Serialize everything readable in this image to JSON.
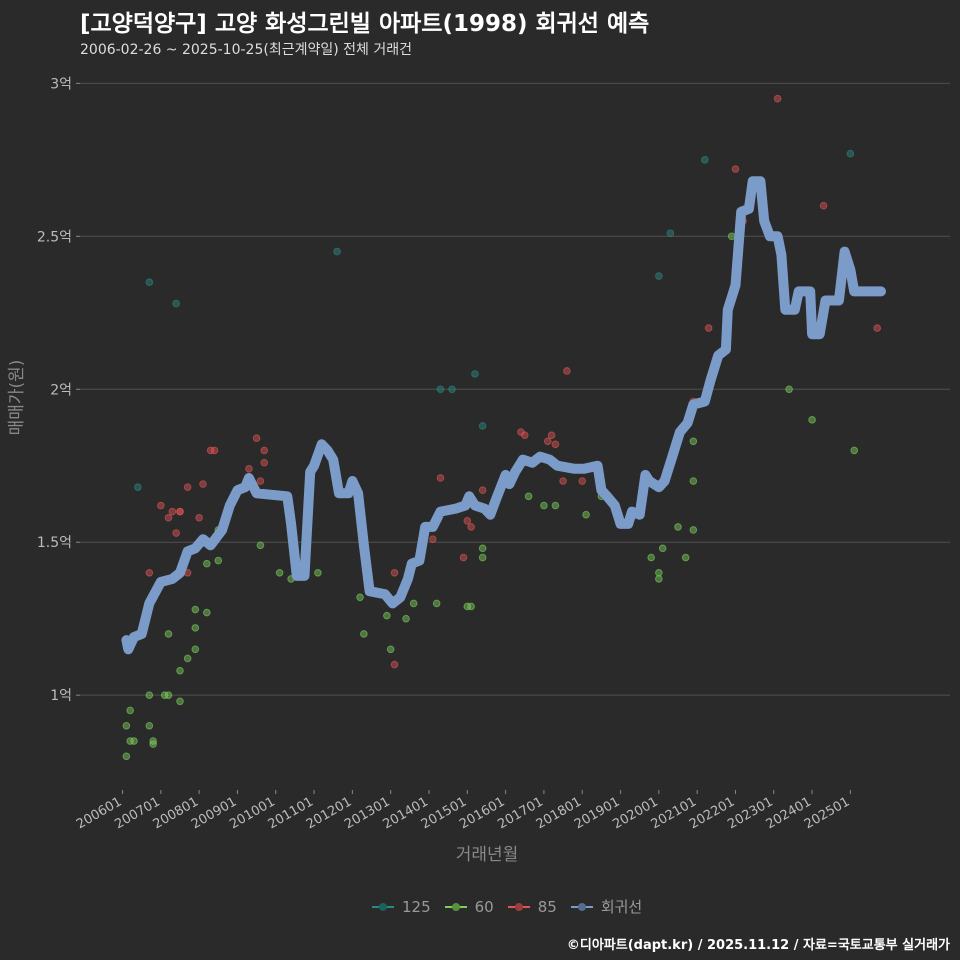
{
  "header": {
    "title": "[고양덕양구] 고양 화성그린빌 아파트(1998) 회귀선 예측",
    "subtitle": "2006-02-26 ~ 2025-10-25(최근계약일) 전체 거래건"
  },
  "footer": "©디아파트(dapt.kr) / 2025.11.12 / 자료=국토교통부 실거래가",
  "colors": {
    "background": "#2a2a2b",
    "grid": "#505050",
    "s125": "#2a8a84",
    "s60": "#7ccf5c",
    "s85": "#e05555",
    "regression": "#7b9bc8"
  },
  "chart_data": {
    "type": "scatter+line",
    "title": "[고양덕양구] 고양 화성그린빌 아파트(1998) 회귀선 예측",
    "xlabel": "거래년월",
    "ylabel": "매매가(원)",
    "xlim": [
      2004.89,
      2027.6
    ],
    "ylim": [
      0.69,
      3.06
    ],
    "grid": true,
    "legend_position": "bottom",
    "x_ticks": [
      {
        "value": 2006,
        "label": "200601"
      },
      {
        "value": 2007,
        "label": "200701"
      },
      {
        "value": 2008,
        "label": "200801"
      },
      {
        "value": 2009,
        "label": "200901"
      },
      {
        "value": 2010,
        "label": "201001"
      },
      {
        "value": 2011,
        "label": "201101"
      },
      {
        "value": 2012,
        "label": "201201"
      },
      {
        "value": 2013,
        "label": "201301"
      },
      {
        "value": 2014,
        "label": "201401"
      },
      {
        "value": 2015,
        "label": "201501"
      },
      {
        "value": 2016,
        "label": "201601"
      },
      {
        "value": 2017,
        "label": "201701"
      },
      {
        "value": 2018,
        "label": "201801"
      },
      {
        "value": 2019,
        "label": "201901"
      },
      {
        "value": 2020,
        "label": "202001"
      },
      {
        "value": 2021,
        "label": "202101"
      },
      {
        "value": 2022,
        "label": "202201"
      },
      {
        "value": 2023,
        "label": "202301"
      },
      {
        "value": 2024,
        "label": "202401"
      },
      {
        "value": 2025,
        "label": "202501"
      }
    ],
    "y_ticks": [
      {
        "value": 1,
        "label": "1억"
      },
      {
        "value": 1.5,
        "label": "1.5억"
      },
      {
        "value": 2,
        "label": "2억"
      },
      {
        "value": 2.5,
        "label": "2.5억"
      },
      {
        "value": 3,
        "label": "3억"
      }
    ],
    "series": [
      {
        "name": "125",
        "kind": "scatter",
        "color": "#2a8a84",
        "points": [
          [
            2006.4,
            1.68
          ],
          [
            2006.7,
            2.35
          ],
          [
            2007.4,
            2.28
          ],
          [
            2011.6,
            2.45
          ],
          [
            2014.3,
            2.0
          ],
          [
            2014.6,
            2.0
          ],
          [
            2015.2,
            2.05
          ],
          [
            2015.4,
            1.88
          ],
          [
            2020.0,
            2.37
          ],
          [
            2020.3,
            2.51
          ],
          [
            2021.2,
            2.75
          ],
          [
            2025.0,
            2.77
          ]
        ]
      },
      {
        "name": "60",
        "kind": "scatter",
        "color": "#7ccf5c",
        "points": [
          [
            2006.1,
            0.9
          ],
          [
            2006.1,
            0.8
          ],
          [
            2006.2,
            0.95
          ],
          [
            2006.2,
            0.85
          ],
          [
            2006.3,
            0.85
          ],
          [
            2006.7,
            0.9
          ],
          [
            2006.7,
            1.0
          ],
          [
            2006.8,
            0.85
          ],
          [
            2006.8,
            0.84
          ],
          [
            2007.1,
            1.0
          ],
          [
            2007.2,
            1.0
          ],
          [
            2007.2,
            1.2
          ],
          [
            2007.5,
            0.98
          ],
          [
            2007.5,
            1.08
          ],
          [
            2007.7,
            1.12
          ],
          [
            2007.9,
            1.15
          ],
          [
            2007.9,
            1.22
          ],
          [
            2007.9,
            1.28
          ],
          [
            2008.2,
            1.43
          ],
          [
            2008.2,
            1.27
          ],
          [
            2008.5,
            1.44
          ],
          [
            2008.5,
            1.54
          ],
          [
            2009.6,
            1.49
          ],
          [
            2010.1,
            1.4
          ],
          [
            2010.4,
            1.38
          ],
          [
            2011.1,
            1.4
          ],
          [
            2012.2,
            1.32
          ],
          [
            2012.3,
            1.2
          ],
          [
            2012.9,
            1.26
          ],
          [
            2013.0,
            1.15
          ],
          [
            2013.4,
            1.25
          ],
          [
            2013.6,
            1.3
          ],
          [
            2014.2,
            1.3
          ],
          [
            2015.0,
            1.29
          ],
          [
            2015.1,
            1.29
          ],
          [
            2015.4,
            1.45
          ],
          [
            2015.4,
            1.48
          ],
          [
            2016.6,
            1.65
          ],
          [
            2017.0,
            1.62
          ],
          [
            2017.3,
            1.62
          ],
          [
            2018.1,
            1.59
          ],
          [
            2018.5,
            1.65
          ],
          [
            2019.8,
            1.45
          ],
          [
            2020.0,
            1.4
          ],
          [
            2020.0,
            1.38
          ],
          [
            2020.1,
            1.48
          ],
          [
            2020.5,
            1.55
          ],
          [
            2020.7,
            1.45
          ],
          [
            2020.9,
            1.54
          ],
          [
            2020.9,
            1.83
          ],
          [
            2020.9,
            1.7
          ],
          [
            2021.9,
            2.5
          ],
          [
            2023.4,
            2.0
          ],
          [
            2024.0,
            1.9
          ],
          [
            2025.1,
            1.8
          ]
        ]
      },
      {
        "name": "85",
        "kind": "scatter",
        "color": "#e05555",
        "points": [
          [
            2006.7,
            1.4
          ],
          [
            2007.0,
            1.62
          ],
          [
            2007.2,
            1.58
          ],
          [
            2007.3,
            1.6
          ],
          [
            2007.4,
            1.53
          ],
          [
            2007.5,
            1.6
          ],
          [
            2007.5,
            1.6
          ],
          [
            2007.7,
            1.4
          ],
          [
            2007.7,
            1.68
          ],
          [
            2008.0,
            1.58
          ],
          [
            2008.1,
            1.69
          ],
          [
            2008.3,
            1.8
          ],
          [
            2008.4,
            1.8
          ],
          [
            2009.3,
            1.74
          ],
          [
            2009.5,
            1.84
          ],
          [
            2009.7,
            1.8
          ],
          [
            2009.7,
            1.76
          ],
          [
            2009.6,
            1.7
          ],
          [
            2013.1,
            1.4
          ],
          [
            2013.1,
            1.1
          ],
          [
            2014.1,
            1.51
          ],
          [
            2014.3,
            1.71
          ],
          [
            2014.9,
            1.45
          ],
          [
            2015.0,
            1.57
          ],
          [
            2015.1,
            1.55
          ],
          [
            2015.4,
            1.67
          ],
          [
            2016.4,
            1.86
          ],
          [
            2016.5,
            1.85
          ],
          [
            2017.1,
            1.83
          ],
          [
            2017.2,
            1.85
          ],
          [
            2017.3,
            1.82
          ],
          [
            2017.5,
            1.7
          ],
          [
            2017.6,
            2.06
          ],
          [
            2018.0,
            1.7
          ],
          [
            2020.9,
            1.96
          ],
          [
            2021.3,
            2.2
          ],
          [
            2022.0,
            2.72
          ],
          [
            2022.2,
            2.55
          ],
          [
            2023.1,
            2.95
          ],
          [
            2024.3,
            2.6
          ],
          [
            2025.7,
            2.2
          ]
        ]
      },
      {
        "name": "회귀선",
        "kind": "line",
        "color": "#7b9bc8",
        "points": [
          [
            2006.1,
            1.18
          ],
          [
            2006.15,
            1.15
          ],
          [
            2006.3,
            1.19
          ],
          [
            2006.5,
            1.2
          ],
          [
            2006.7,
            1.3
          ],
          [
            2007.0,
            1.37
          ],
          [
            2007.3,
            1.38
          ],
          [
            2007.5,
            1.4
          ],
          [
            2007.7,
            1.47
          ],
          [
            2007.9,
            1.48
          ],
          [
            2008.1,
            1.51
          ],
          [
            2008.3,
            1.49
          ],
          [
            2008.6,
            1.54
          ],
          [
            2008.8,
            1.62
          ],
          [
            2009.0,
            1.67
          ],
          [
            2009.2,
            1.68
          ],
          [
            2009.3,
            1.71
          ],
          [
            2009.5,
            1.66
          ],
          [
            2010.3,
            1.65
          ],
          [
            2010.4,
            1.56
          ],
          [
            2010.55,
            1.39
          ],
          [
            2010.75,
            1.39
          ],
          [
            2010.9,
            1.73
          ],
          [
            2011.0,
            1.75
          ],
          [
            2011.2,
            1.82
          ],
          [
            2011.35,
            1.8
          ],
          [
            2011.5,
            1.77
          ],
          [
            2011.65,
            1.66
          ],
          [
            2011.9,
            1.66
          ],
          [
            2012.0,
            1.7
          ],
          [
            2012.15,
            1.66
          ],
          [
            2012.3,
            1.49
          ],
          [
            2012.45,
            1.34
          ],
          [
            2012.85,
            1.33
          ],
          [
            2013.05,
            1.3
          ],
          [
            2013.25,
            1.32
          ],
          [
            2013.45,
            1.38
          ],
          [
            2013.55,
            1.43
          ],
          [
            2013.75,
            1.44
          ],
          [
            2013.9,
            1.55
          ],
          [
            2014.1,
            1.55
          ],
          [
            2014.3,
            1.6
          ],
          [
            2014.7,
            1.61
          ],
          [
            2014.95,
            1.62
          ],
          [
            2015.05,
            1.65
          ],
          [
            2015.2,
            1.62
          ],
          [
            2015.45,
            1.61
          ],
          [
            2015.6,
            1.59
          ],
          [
            2015.75,
            1.64
          ],
          [
            2016.0,
            1.72
          ],
          [
            2016.1,
            1.69
          ],
          [
            2016.25,
            1.73
          ],
          [
            2016.45,
            1.77
          ],
          [
            2016.7,
            1.76
          ],
          [
            2016.9,
            1.78
          ],
          [
            2017.15,
            1.77
          ],
          [
            2017.35,
            1.75
          ],
          [
            2017.8,
            1.74
          ],
          [
            2018.05,
            1.74
          ],
          [
            2018.4,
            1.75
          ],
          [
            2018.5,
            1.67
          ],
          [
            2018.65,
            1.65
          ],
          [
            2018.85,
            1.62
          ],
          [
            2019.0,
            1.56
          ],
          [
            2019.2,
            1.56
          ],
          [
            2019.3,
            1.6
          ],
          [
            2019.5,
            1.59
          ],
          [
            2019.65,
            1.72
          ],
          [
            2019.75,
            1.7
          ],
          [
            2020.0,
            1.68
          ],
          [
            2020.15,
            1.7
          ],
          [
            2020.35,
            1.78
          ],
          [
            2020.55,
            1.86
          ],
          [
            2020.75,
            1.89
          ],
          [
            2020.9,
            1.95
          ],
          [
            2021.2,
            1.96
          ],
          [
            2021.35,
            2.03
          ],
          [
            2021.55,
            2.11
          ],
          [
            2021.75,
            2.13
          ],
          [
            2021.8,
            2.26
          ],
          [
            2022.0,
            2.34
          ],
          [
            2022.15,
            2.58
          ],
          [
            2022.35,
            2.59
          ],
          [
            2022.45,
            2.68
          ],
          [
            2022.65,
            2.68
          ],
          [
            2022.75,
            2.55
          ],
          [
            2022.9,
            2.5
          ],
          [
            2023.1,
            2.5
          ],
          [
            2023.2,
            2.44
          ],
          [
            2023.3,
            2.26
          ],
          [
            2023.55,
            2.26
          ],
          [
            2023.65,
            2.32
          ],
          [
            2023.95,
            2.32
          ],
          [
            2024.0,
            2.18
          ],
          [
            2024.2,
            2.18
          ],
          [
            2024.35,
            2.29
          ],
          [
            2024.7,
            2.29
          ],
          [
            2024.85,
            2.45
          ],
          [
            2025.0,
            2.39
          ],
          [
            2025.1,
            2.32
          ],
          [
            2025.8,
            2.32
          ]
        ]
      }
    ]
  }
}
